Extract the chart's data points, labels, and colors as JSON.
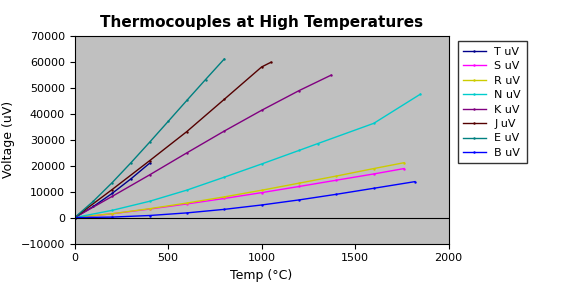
{
  "title": "Thermocouples at High Temperatures",
  "xlabel": "Temp (°C)",
  "ylabel": "Voltage (uV)",
  "xlim": [
    0,
    2000
  ],
  "ylim": [
    -10000,
    70000
  ],
  "bg_color": "#c0c0c0",
  "series": {
    "T": {
      "color": "#00008b",
      "points": [
        [
          0,
          0
        ],
        [
          100,
          4279
        ],
        [
          200,
          9288
        ],
        [
          300,
          14862
        ],
        [
          400,
          20872
        ]
      ]
    },
    "S": {
      "color": "#ff00ff",
      "points": [
        [
          0,
          0
        ],
        [
          200,
          1441
        ],
        [
          400,
          3259
        ],
        [
          600,
          5239
        ],
        [
          800,
          7345
        ],
        [
          1000,
          9587
        ],
        [
          1200,
          11951
        ],
        [
          1400,
          14373
        ],
        [
          1600,
          16777
        ],
        [
          1762,
          18849
        ]
      ]
    },
    "R": {
      "color": "#cccc00",
      "points": [
        [
          0,
          0
        ],
        [
          200,
          1469
        ],
        [
          400,
          3408
        ],
        [
          600,
          5583
        ],
        [
          800,
          7950
        ],
        [
          1000,
          10506
        ],
        [
          1200,
          13228
        ],
        [
          1400,
          15975
        ],
        [
          1600,
          18849
        ],
        [
          1762,
          21103
        ]
      ]
    },
    "N": {
      "color": "#00cccc",
      "points": [
        [
          0,
          0
        ],
        [
          200,
          2774
        ],
        [
          400,
          6255
        ],
        [
          600,
          10560
        ],
        [
          800,
          15536
        ],
        [
          1000,
          20613
        ],
        [
          1200,
          25824
        ],
        [
          1300,
          28455
        ],
        [
          1600,
          36256
        ],
        [
          1850,
          47502
        ]
      ]
    },
    "K": {
      "color": "#800080",
      "points": [
        [
          0,
          0
        ],
        [
          200,
          8138
        ],
        [
          400,
          16397
        ],
        [
          600,
          24906
        ],
        [
          800,
          33275
        ],
        [
          1000,
          41276
        ],
        [
          1200,
          48838
        ],
        [
          1372,
          54807
        ]
      ]
    },
    "J": {
      "color": "#550000",
      "points": [
        [
          0,
          0
        ],
        [
          200,
          10779
        ],
        [
          400,
          21848
        ],
        [
          600,
          33102
        ],
        [
          800,
          45494
        ],
        [
          1000,
          57953
        ],
        [
          1050,
          59760
        ]
      ]
    },
    "E": {
      "color": "#008080",
      "points": [
        [
          0,
          0
        ],
        [
          100,
          6319
        ],
        [
          200,
          13421
        ],
        [
          300,
          21036
        ],
        [
          400,
          28943
        ],
        [
          500,
          37005
        ],
        [
          600,
          45093
        ],
        [
          700,
          53112
        ],
        [
          800,
          61017
        ]
      ]
    },
    "B": {
      "color": "#0000ff",
      "points": [
        [
          0,
          -13
        ],
        [
          200,
          178
        ],
        [
          400,
          787
        ],
        [
          600,
          1792
        ],
        [
          800,
          3154
        ],
        [
          1000,
          4834
        ],
        [
          1200,
          6786
        ],
        [
          1400,
          8952
        ],
        [
          1600,
          11263
        ],
        [
          1820,
          13820
        ]
      ]
    }
  },
  "legend_order": [
    "T",
    "S",
    "R",
    "N",
    "K",
    "J",
    "E",
    "B"
  ]
}
